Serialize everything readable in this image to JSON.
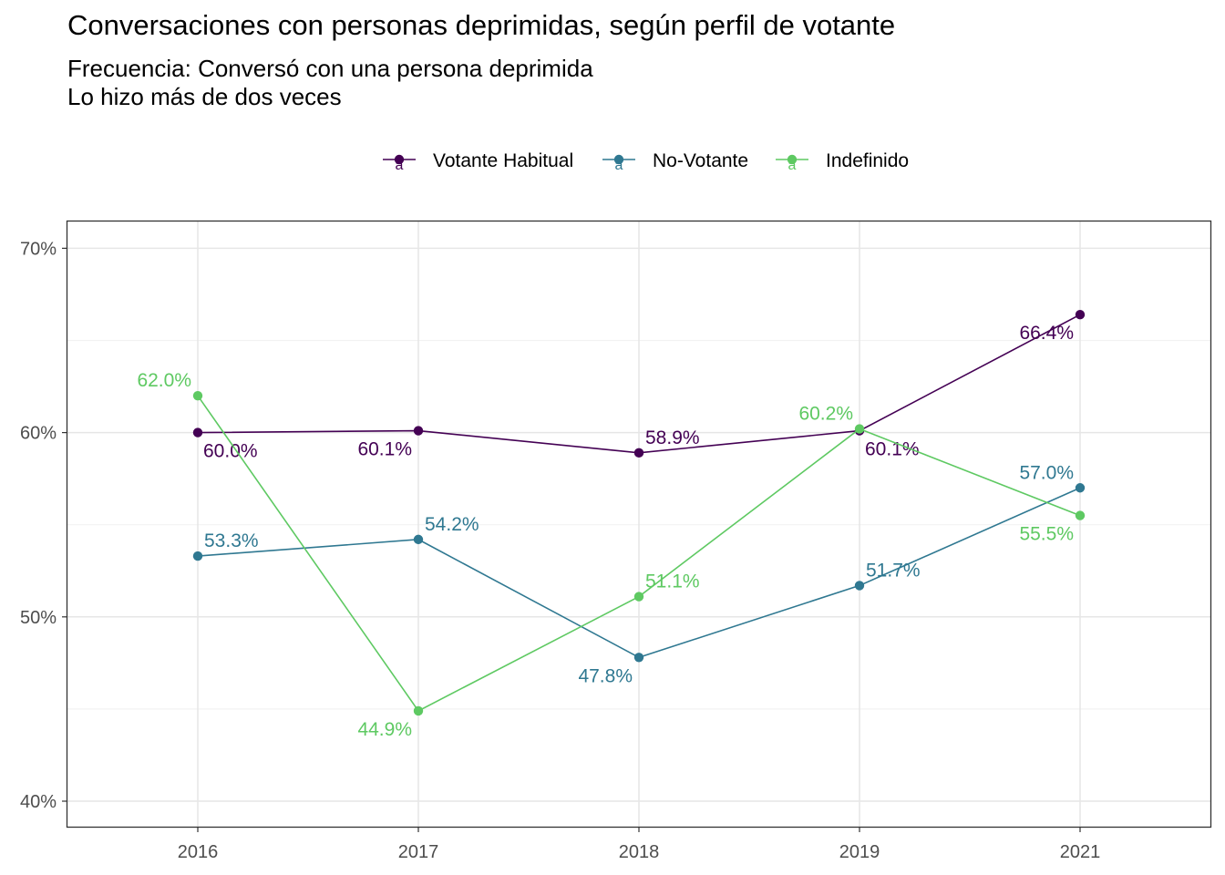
{
  "title": "Conversaciones con personas deprimidas, según perfil de votante",
  "subtitle_lines": [
    "Frecuencia: Conversó con una persona deprimida",
    "Lo hizo más de dos veces"
  ],
  "chart_data": {
    "type": "line",
    "title": "Conversaciones con personas deprimidas, según perfil de votante",
    "subtitle": "Frecuencia: Conversó con una persona deprimida\nLo hizo más de dos veces",
    "xlabel": "",
    "ylabel": "",
    "categories": [
      "2016",
      "2017",
      "2018",
      "2019",
      "2021"
    ],
    "ylim": [
      0.39,
      0.705
    ],
    "yticks": [
      0.4,
      0.5,
      0.6,
      0.7
    ],
    "ytick_labels": [
      "40%",
      "50%",
      "60%",
      "70%"
    ],
    "grid": true,
    "legend_position": "top",
    "series": [
      {
        "name": "Votante Habitual",
        "color": "#440154",
        "values": [
          0.6,
          0.601,
          0.589,
          0.601,
          0.664
        ],
        "labels": [
          "60.0%",
          "60.1%",
          "58.9%",
          "60.1%",
          "66.4%"
        ],
        "label_placement": [
          "below-right",
          "below-left",
          "above-right",
          "below-right",
          "below-left"
        ]
      },
      {
        "name": "No-Votante",
        "color": "#2f7891",
        "values": [
          0.533,
          0.542,
          0.478,
          0.517,
          0.57
        ],
        "labels": [
          "53.3%",
          "54.2%",
          "47.8%",
          "51.7%",
          "57.0%"
        ],
        "label_placement": [
          "above-right",
          "above-right",
          "below-left",
          "above-right",
          "above-left"
        ]
      },
      {
        "name": "Indefinido",
        "color": "#5ec962",
        "values": [
          0.62,
          0.449,
          0.511,
          0.602,
          0.555
        ],
        "labels": [
          "62.0%",
          "44.9%",
          "51.1%",
          "60.2%",
          "55.5%"
        ],
        "label_placement": [
          "above-left",
          "below-left",
          "above-right",
          "above-left",
          "below-left"
        ]
      }
    ],
    "legend_key_glyph": "a"
  }
}
